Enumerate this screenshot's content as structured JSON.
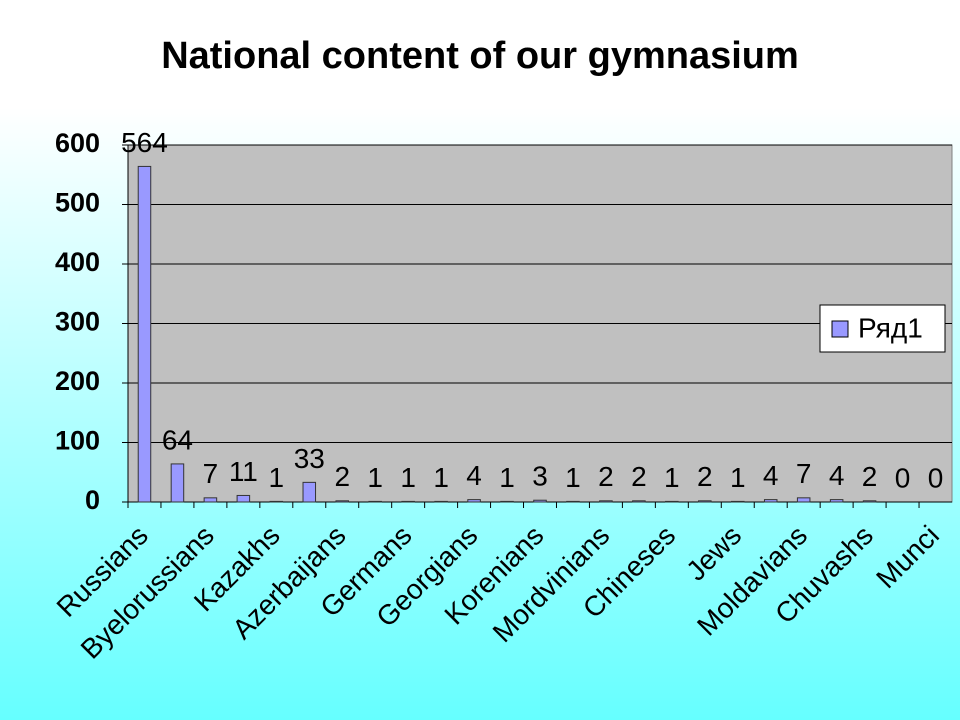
{
  "chart_data": {
    "type": "bar",
    "title": "National content of our gymnasium",
    "categories": [
      "Russians",
      null,
      "Byelorussians",
      null,
      "Kazakhs",
      null,
      "Azerbaijans",
      null,
      "Germans",
      null,
      "Georgians",
      null,
      "Korenians",
      null,
      "Mordvinians",
      null,
      "Chineses",
      null,
      "Jews",
      null,
      "Moldavians",
      null,
      "Chuvashs",
      null,
      "Munci"
    ],
    "series": [
      {
        "name": "Ряд1",
        "color": "#9999ff",
        "values": [
          564,
          64,
          7,
          11,
          1,
          33,
          2,
          1,
          1,
          1,
          4,
          1,
          3,
          1,
          2,
          2,
          1,
          2,
          1,
          4,
          7,
          4,
          2,
          0,
          0
        ]
      }
    ],
    "ylim": [
      0,
      600
    ],
    "yticks": [
      0,
      100,
      200,
      300,
      400,
      500,
      600
    ],
    "grid": true,
    "legend": "right"
  }
}
